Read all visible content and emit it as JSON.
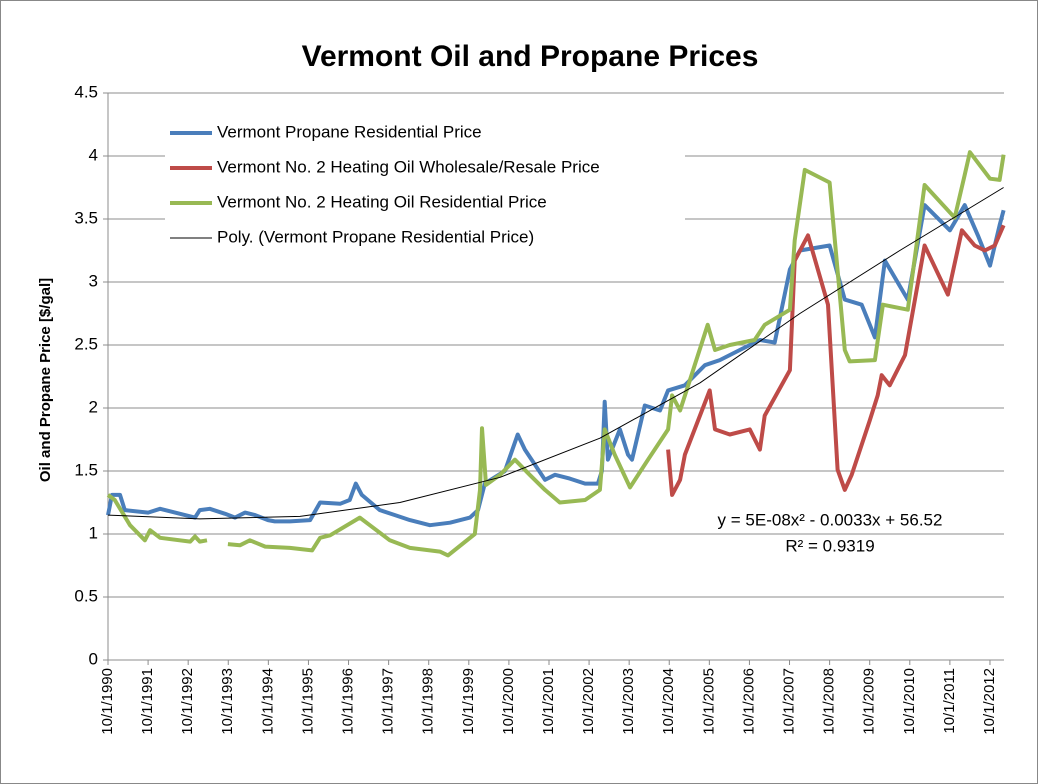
{
  "chart_data": {
    "type": "line",
    "title": "Vermont Oil and Propane Prices",
    "y_label": "Oil and Propane Price [$/gal]",
    "annotations": [
      "y = 5E-08x² - 0.0033x + 56.52",
      "R² = 0.9319"
    ],
    "xlim": [
      1990.75,
      2013.1
    ],
    "ylim": [
      0,
      4.5
    ],
    "yticks": [
      0,
      0.5,
      1,
      1.5,
      2,
      2.5,
      3,
      3.5,
      4,
      4.5
    ],
    "xticks": [
      {
        "value": 1990.75,
        "label": "10/1/1990"
      },
      {
        "value": 1991.75,
        "label": "10/1/1991"
      },
      {
        "value": 1992.75,
        "label": "10/1/1992"
      },
      {
        "value": 1993.75,
        "label": "10/1/1993"
      },
      {
        "value": 1994.75,
        "label": "10/1/1994"
      },
      {
        "value": 1995.75,
        "label": "10/1/1995"
      },
      {
        "value": 1996.75,
        "label": "10/1/1996"
      },
      {
        "value": 1997.75,
        "label": "10/1/1997"
      },
      {
        "value": 1998.75,
        "label": "10/1/1998"
      },
      {
        "value": 1999.75,
        "label": "10/1/1999"
      },
      {
        "value": 2000.75,
        "label": "10/1/2000"
      },
      {
        "value": 2001.75,
        "label": "10/1/2001"
      },
      {
        "value": 2002.75,
        "label": "10/1/2002"
      },
      {
        "value": 2003.75,
        "label": "10/1/2003"
      },
      {
        "value": 2004.75,
        "label": "10/1/2004"
      },
      {
        "value": 2005.75,
        "label": "10/1/2005"
      },
      {
        "value": 2006.75,
        "label": "10/1/2006"
      },
      {
        "value": 2007.75,
        "label": "10/1/2007"
      },
      {
        "value": 2008.75,
        "label": "10/1/2008"
      },
      {
        "value": 2009.75,
        "label": "10/1/2009"
      },
      {
        "value": 2010.75,
        "label": "10/1/2010"
      },
      {
        "value": 2011.75,
        "label": "10/1/2011"
      },
      {
        "value": 2012.75,
        "label": "10/1/2012"
      }
    ],
    "grid": true,
    "legend": "top-left",
    "series": [
      {
        "name": "Vermont Propane Residential Price",
        "color": "#4a7ebb",
        "width": 4,
        "x": [
          1990.75,
          1990.85,
          1991.05,
          1991.17,
          1991.75,
          1992.05,
          1992.67,
          1992.92,
          1993.04,
          1993.29,
          1993.67,
          1993.92,
          1994.17,
          1994.42,
          1994.74,
          1994.91,
          1995.29,
          1995.79,
          1996.04,
          1996.54,
          1996.78,
          1996.93,
          1997.08,
          1997.53,
          1997.91,
          1998.28,
          1998.78,
          1999.28,
          1999.78,
          1999.98,
          2000.15,
          2000.65,
          2000.97,
          2001.15,
          2001.65,
          2001.9,
          2002.27,
          2002.65,
          2002.97,
          2003.07,
          2003.14,
          2003.22,
          2003.52,
          2003.72,
          2003.82,
          2004.14,
          2004.52,
          2004.72,
          2005.14,
          2005.64,
          2006.01,
          2006.51,
          2007.01,
          2007.38,
          2007.76,
          2008.01,
          2008.75,
          2009.13,
          2009.55,
          2009.88,
          2010.13,
          2010.7,
          2011.12,
          2011.75,
          2012.12,
          2012.45,
          2012.75,
          2012.99,
          2013.09
        ],
        "values": [
          1.15,
          1.31,
          1.31,
          1.19,
          1.17,
          1.2,
          1.15,
          1.13,
          1.19,
          1.2,
          1.16,
          1.13,
          1.17,
          1.15,
          1.11,
          1.1,
          1.1,
          1.11,
          1.25,
          1.24,
          1.27,
          1.4,
          1.31,
          1.19,
          1.15,
          1.11,
          1.07,
          1.09,
          1.13,
          1.19,
          1.4,
          1.5,
          1.79,
          1.67,
          1.43,
          1.47,
          1.44,
          1.4,
          1.4,
          1.5,
          2.05,
          1.59,
          1.83,
          1.63,
          1.59,
          2.02,
          1.98,
          2.14,
          2.18,
          2.34,
          2.38,
          2.46,
          2.54,
          2.52,
          3.1,
          3.25,
          3.29,
          2.86,
          2.82,
          2.56,
          3.17,
          2.86,
          3.61,
          3.41,
          3.61,
          3.37,
          3.13,
          3.45,
          3.57
        ]
      },
      {
        "name": "Vermont No. 2 Heating Oil Wholesale/Resale Price",
        "color": "#be4b48",
        "width": 4,
        "x": [
          2004.72,
          2004.82,
          2005.02,
          2005.14,
          2005.76,
          2005.89,
          2006.26,
          2006.76,
          2007.01,
          2007.13,
          2007.76,
          2007.88,
          2008.21,
          2008.71,
          2008.95,
          2009.13,
          2009.3,
          2009.75,
          2009.95,
          2010.05,
          2010.25,
          2010.63,
          2011.12,
          2011.7,
          2012.05,
          2012.37,
          2012.62,
          2012.87,
          2013.09
        ],
        "values": [
          1.67,
          1.31,
          1.43,
          1.63,
          2.14,
          1.83,
          1.79,
          1.83,
          1.67,
          1.94,
          2.3,
          3.17,
          3.37,
          2.82,
          1.51,
          1.35,
          1.47,
          1.9,
          2.1,
          2.26,
          2.18,
          2.42,
          3.29,
          2.9,
          3.41,
          3.29,
          3.25,
          3.29,
          3.45
        ]
      },
      {
        "name": "Vermont No. 2 Heating Oil Residential Price",
        "color": "#98b954",
        "width": 4,
        "x": [
          1990.75,
          1990.92,
          1991.3,
          1991.67,
          1991.8,
          1992.05,
          1992.8,
          1992.92,
          1993.04,
          1993.22,
          1993.5,
          1993.74,
          1994.04,
          1994.29,
          1994.67,
          1995.29,
          1995.84,
          1996.04,
          1996.29,
          1997.03,
          1997.28,
          1997.78,
          1998.28,
          1999.03,
          1999.23,
          1999.9,
          2000.03,
          2000.08,
          2000.18,
          2000.53,
          2000.9,
          2001.27,
          2001.65,
          2002.02,
          2002.65,
          2003.02,
          2003.14,
          2003.39,
          2003.77,
          2004.22,
          2004.72,
          2004.82,
          2005.02,
          2005.71,
          2005.89,
          2006.26,
          2006.88,
          2007.13,
          2007.76,
          2007.88,
          2008.13,
          2008.75,
          2009.13,
          2009.25,
          2009.88,
          2010.08,
          2010.7,
          2011.12,
          2011.87,
          2012.12,
          2012.25,
          2012.75,
          2012.99,
          2013.09
        ],
        "values": [
          1.31,
          1.27,
          1.07,
          0.95,
          1.03,
          0.97,
          0.94,
          0.98,
          0.94,
          0.95,
          null,
          0.92,
          0.91,
          0.95,
          0.9,
          0.89,
          0.87,
          0.97,
          0.99,
          1.13,
          1.07,
          0.95,
          0.89,
          0.86,
          0.83,
          1.0,
          1.35,
          1.84,
          1.39,
          1.47,
          1.59,
          1.47,
          1.35,
          1.25,
          1.27,
          1.35,
          1.83,
          1.63,
          1.37,
          1.59,
          1.83,
          2.1,
          1.98,
          2.66,
          2.46,
          2.5,
          2.54,
          2.66,
          2.78,
          3.33,
          3.89,
          3.79,
          2.46,
          2.37,
          2.38,
          2.82,
          2.78,
          3.77,
          3.51,
          3.85,
          4.03,
          3.82,
          3.81,
          4.01
        ]
      },
      {
        "name": "Poly. (Vermont Propane Residential Price)",
        "color": "#000000",
        "width": 1,
        "x": [
          1990.75,
          1993.04,
          1995.54,
          1998.03,
          2000.53,
          2003.02,
          2005.52,
          2008.01,
          2010.5,
          2013.09
        ],
        "values": [
          1.15,
          1.12,
          1.14,
          1.25,
          1.45,
          1.76,
          2.2,
          2.75,
          3.25,
          3.75
        ]
      }
    ]
  }
}
